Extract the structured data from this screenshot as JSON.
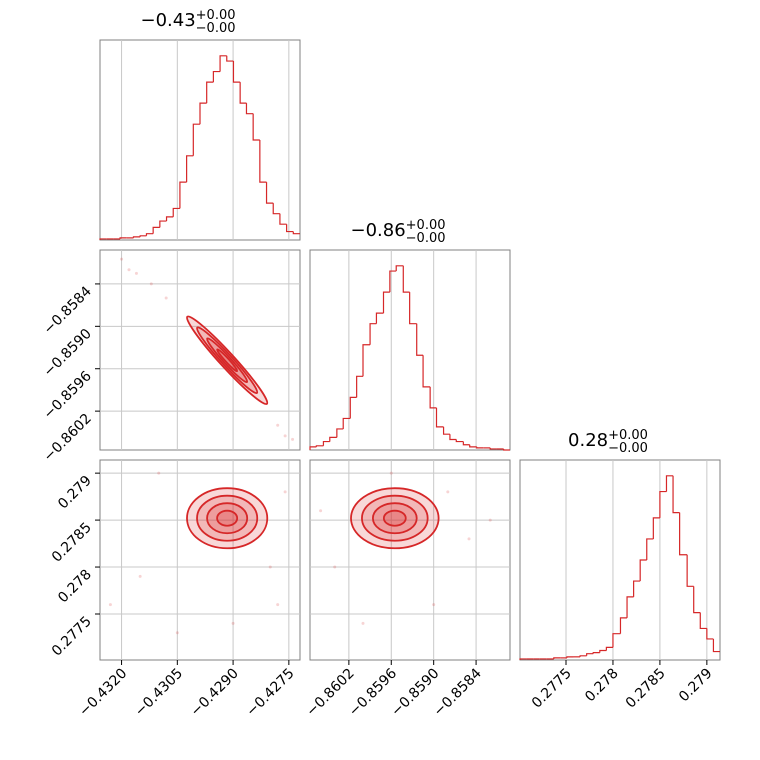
{
  "chart_data": {
    "type": "corner",
    "color": "#d62728",
    "grid": true,
    "parameters": [
      {
        "title": {
          "value": "−0.43",
          "upper": "+0.00",
          "lower": "−0.00"
        },
        "lim": [
          -0.43258,
          -0.4272
        ],
        "ticks": [
          {
            "value": -0.432,
            "label": "−0.4320"
          },
          {
            "value": -0.4305,
            "label": "−0.4305"
          },
          {
            "value": -0.429,
            "label": "−0.4290"
          },
          {
            "value": -0.4275,
            "label": "−0.4275"
          }
        ],
        "hist": {
          "ylim": [
            0,
            190
          ],
          "bins": [
            -0.43258,
            -0.4324,
            -0.43222,
            -0.43204,
            -0.43186,
            -0.43168,
            -0.4315,
            -0.43133,
            -0.43115,
            -0.43097,
            -0.43079,
            -0.43061,
            -0.43043,
            -0.43025,
            -0.43007,
            -0.42989,
            -0.42971,
            -0.42953,
            -0.42935,
            -0.42917,
            -0.42899,
            -0.42881,
            -0.42864,
            -0.42846,
            -0.42828,
            -0.4281,
            -0.42792,
            -0.42774,
            -0.42756,
            -0.42738,
            -0.4272
          ],
          "values": [
            1,
            1,
            1,
            2,
            2,
            3,
            4,
            6,
            12,
            18,
            22,
            30,
            55,
            80,
            110,
            130,
            150,
            160,
            175,
            170,
            150,
            130,
            120,
            95,
            55,
            35,
            25,
            15,
            8,
            6
          ]
        }
      },
      {
        "title": {
          "value": "−0.86",
          "upper": "+0.00",
          "lower": "−0.00"
        },
        "lim": [
          -0.86075,
          -0.85792
        ],
        "ticks": [
          {
            "value": -0.8602,
            "label": "−0.8602"
          },
          {
            "value": -0.8596,
            "label": "−0.8596"
          },
          {
            "value": -0.859,
            "label": "−0.8590"
          },
          {
            "value": -0.8584,
            "label": "−0.8584"
          }
        ],
        "hist": {
          "ylim": [
            0,
            190
          ],
          "bins": [
            -0.86075,
            -0.86066,
            -0.86056,
            -0.86047,
            -0.86037,
            -0.86028,
            -0.86018,
            -0.86009,
            -0.86,
            -0.8599,
            -0.85981,
            -0.85971,
            -0.85962,
            -0.85953,
            -0.85943,
            -0.85934,
            -0.85924,
            -0.85915,
            -0.85905,
            -0.85896,
            -0.85886,
            -0.85877,
            -0.85868,
            -0.85858,
            -0.85849,
            -0.85839,
            -0.8583,
            -0.8582,
            -0.85811,
            -0.85801,
            -0.85792
          ],
          "values": [
            3,
            4,
            8,
            12,
            20,
            30,
            50,
            70,
            100,
            120,
            130,
            150,
            170,
            175,
            150,
            120,
            90,
            60,
            40,
            22,
            15,
            10,
            8,
            5,
            3,
            2,
            2,
            1,
            1,
            0
          ]
        }
      },
      {
        "title": {
          "value": "0.28",
          "upper": "+0.00",
          "lower": "−0.00"
        },
        "lim": [
          0.27701,
          0.27914
        ],
        "ticks": [
          0.2775,
          0.278,
          0.2785,
          0.279
        ],
        "hist": {
          "ylim": [
            0,
            190
          ],
          "bins": [
            0.27701,
            0.27708,
            0.27715,
            0.27722,
            0.27729,
            0.27737,
            0.27744,
            0.27751,
            0.27758,
            0.27765,
            0.27772,
            0.27779,
            0.27786,
            0.27793,
            0.278,
            0.27808,
            0.27815,
            0.27822,
            0.27829,
            0.27836,
            0.27843,
            0.2785,
            0.27857,
            0.27864,
            0.27871,
            0.27879,
            0.27886,
            0.27893,
            0.279,
            0.27907,
            0.27914
          ],
          "values": [
            1,
            1,
            1,
            1,
            1,
            2,
            2,
            3,
            3,
            4,
            6,
            7,
            9,
            12,
            25,
            40,
            60,
            75,
            95,
            115,
            135,
            160,
            175,
            140,
            100,
            70,
            45,
            30,
            20,
            8
          ]
        }
      }
    ],
    "pairs": [
      {
        "center": [
          -0.42916,
          -0.85948
        ],
        "sigma": [
          0.00054,
          0.00031
        ],
        "rho": -0.97,
        "levels": [
          0.5,
          1,
          1.5,
          2
        ],
        "x": [
          -0.432,
          -0.4316,
          -0.4312,
          -0.4308,
          -0.4278,
          -0.4276,
          -0.4274,
          -0.4318
        ],
        "y": [
          -0.85805,
          -0.85825,
          -0.8584,
          -0.8586,
          -0.8604,
          -0.86055,
          -0.8606,
          -0.8582
        ]
      },
      {
        "center": [
          -0.42916,
          0.27852
        ],
        "sigma": [
          0.00054,
          0.00016
        ],
        "rho": 0,
        "levels": [
          0.5,
          1,
          1.5,
          2
        ],
        "x": [
          -0.4323,
          -0.4315,
          -0.4305,
          -0.428,
          -0.4276,
          -0.431,
          -0.429,
          -0.4278
        ],
        "y": [
          0.2776,
          0.2779,
          0.2773,
          0.278,
          0.2788,
          0.279,
          0.2774,
          0.2776
        ]
      },
      {
        "center": [
          -0.85955,
          0.27852
        ],
        "sigma": [
          0.00031,
          0.00016
        ],
        "rho": 0,
        "levels": [
          0.5,
          1,
          1.5,
          2
        ],
        "x": [
          -0.8606,
          -0.8604,
          -0.859,
          -0.8585,
          -0.8582,
          -0.86,
          -0.8596,
          -0.8588
        ],
        "y": [
          0.2786,
          0.278,
          0.2776,
          0.2783,
          0.2785,
          0.2774,
          0.279,
          0.2788
        ]
      }
    ]
  }
}
